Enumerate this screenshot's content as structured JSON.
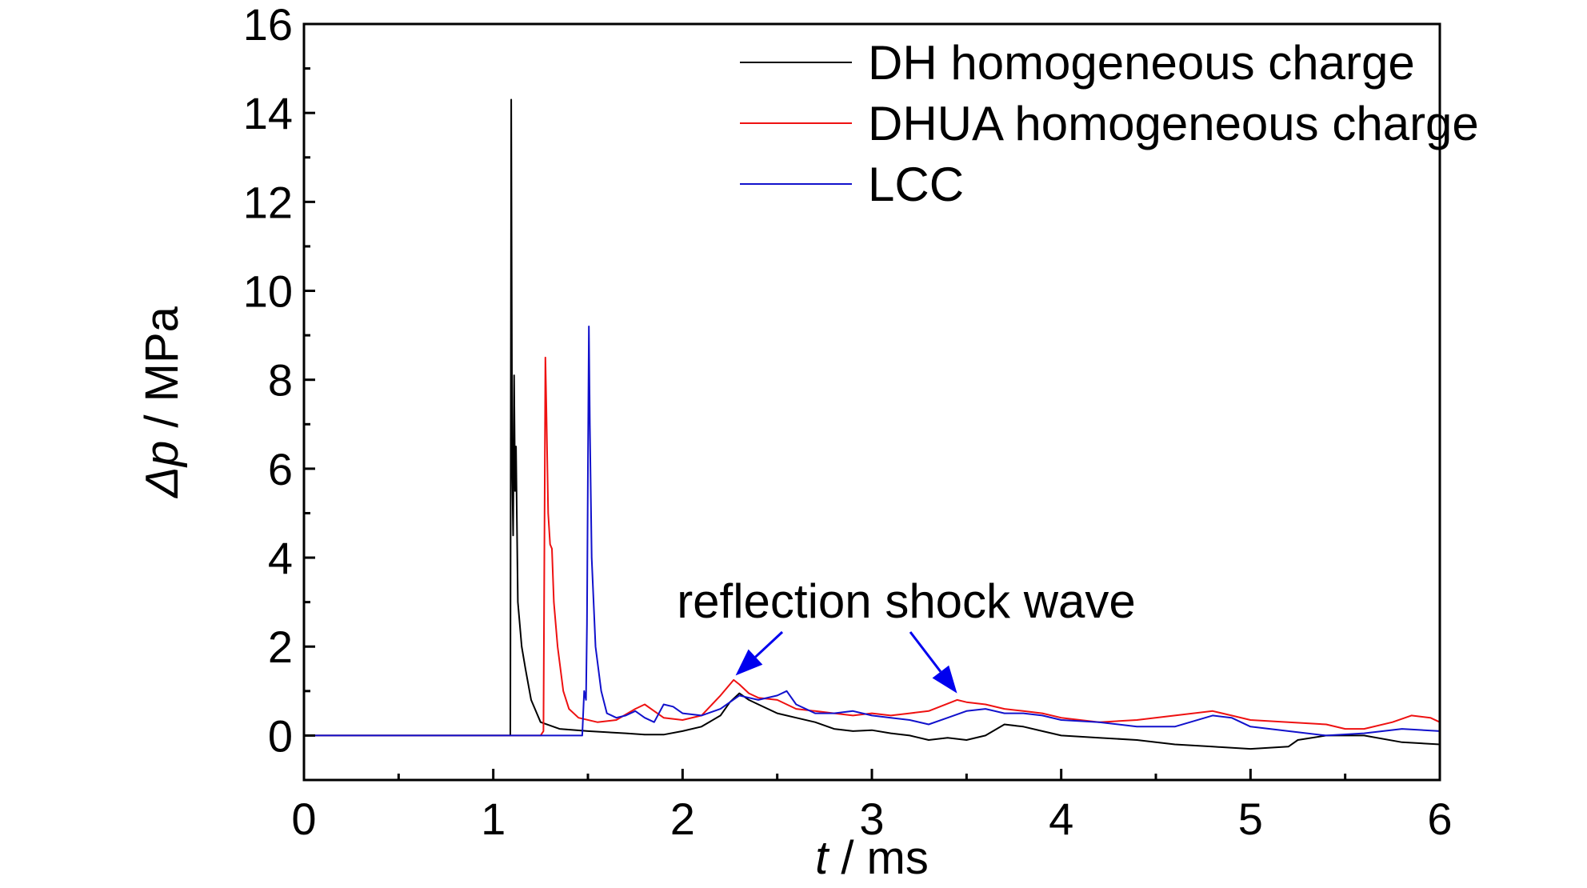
{
  "chart_data": {
    "type": "line",
    "xlabel": {
      "var": "t",
      "unit": " / ms"
    },
    "ylabel": {
      "var": "Δp",
      "unit": " / MPa"
    },
    "xlim": [
      0,
      6
    ],
    "ylim": [
      -1,
      16
    ],
    "x_ticks": [
      0,
      1,
      2,
      3,
      4,
      5,
      6
    ],
    "y_ticks": [
      0,
      2,
      4,
      6,
      8,
      10,
      12,
      14,
      16
    ],
    "grid": false,
    "legend_position": "top-right",
    "annotation": {
      "text": "reflection shock wave",
      "arrow_targets": [
        [
          2.28,
          1.35
        ],
        [
          3.45,
          0.95
        ]
      ],
      "color": "#0000ee"
    },
    "series": [
      {
        "name": "DH homogeneous charge",
        "color": "#000000",
        "points": [
          [
            0,
            0
          ],
          [
            1.08,
            0
          ],
          [
            1.09,
            0
          ],
          [
            1.095,
            14.3
          ],
          [
            1.1,
            6.0
          ],
          [
            1.105,
            4.5
          ],
          [
            1.11,
            8.1
          ],
          [
            1.115,
            5.5
          ],
          [
            1.12,
            6.5
          ],
          [
            1.13,
            3.0
          ],
          [
            1.15,
            2.0
          ],
          [
            1.17,
            1.5
          ],
          [
            1.2,
            0.8
          ],
          [
            1.25,
            0.3
          ],
          [
            1.35,
            0.15
          ],
          [
            1.5,
            0.1
          ],
          [
            1.7,
            0.05
          ],
          [
            1.8,
            0.02
          ],
          [
            1.9,
            0.02
          ],
          [
            2.0,
            0.1
          ],
          [
            2.1,
            0.2
          ],
          [
            2.2,
            0.45
          ],
          [
            2.25,
            0.75
          ],
          [
            2.3,
            0.95
          ],
          [
            2.35,
            0.8
          ],
          [
            2.4,
            0.7
          ],
          [
            2.5,
            0.5
          ],
          [
            2.6,
            0.4
          ],
          [
            2.7,
            0.3
          ],
          [
            2.8,
            0.15
          ],
          [
            2.9,
            0.1
          ],
          [
            3.0,
            0.12
          ],
          [
            3.1,
            0.05
          ],
          [
            3.2,
            0.0
          ],
          [
            3.3,
            -0.1
          ],
          [
            3.4,
            -0.05
          ],
          [
            3.5,
            -0.1
          ],
          [
            3.6,
            0.0
          ],
          [
            3.7,
            0.25
          ],
          [
            3.8,
            0.2
          ],
          [
            3.9,
            0.1
          ],
          [
            4.0,
            0.0
          ],
          [
            4.2,
            -0.05
          ],
          [
            4.4,
            -0.1
          ],
          [
            4.6,
            -0.2
          ],
          [
            4.8,
            -0.25
          ],
          [
            5.0,
            -0.3
          ],
          [
            5.2,
            -0.25
          ],
          [
            5.25,
            -0.1
          ],
          [
            5.4,
            0.0
          ],
          [
            5.6,
            0.0
          ],
          [
            5.8,
            -0.15
          ],
          [
            6.0,
            -0.2
          ]
        ]
      },
      {
        "name": "DHUA homogeneous charge",
        "color": "#ee1111",
        "points": [
          [
            0,
            0
          ],
          [
            1.25,
            0
          ],
          [
            1.265,
            0.1
          ],
          [
            1.275,
            8.5
          ],
          [
            1.28,
            7.5
          ],
          [
            1.29,
            5.0
          ],
          [
            1.3,
            4.3
          ],
          [
            1.31,
            4.2
          ],
          [
            1.32,
            3.0
          ],
          [
            1.34,
            2.0
          ],
          [
            1.37,
            1.0
          ],
          [
            1.4,
            0.6
          ],
          [
            1.45,
            0.4
          ],
          [
            1.55,
            0.3
          ],
          [
            1.65,
            0.35
          ],
          [
            1.75,
            0.6
          ],
          [
            1.8,
            0.7
          ],
          [
            1.85,
            0.55
          ],
          [
            1.9,
            0.4
          ],
          [
            2.0,
            0.35
          ],
          [
            2.1,
            0.45
          ],
          [
            2.2,
            0.9
          ],
          [
            2.27,
            1.25
          ],
          [
            2.3,
            1.15
          ],
          [
            2.35,
            0.95
          ],
          [
            2.4,
            0.85
          ],
          [
            2.5,
            0.8
          ],
          [
            2.6,
            0.6
          ],
          [
            2.7,
            0.55
          ],
          [
            2.8,
            0.5
          ],
          [
            2.9,
            0.45
          ],
          [
            3.0,
            0.5
          ],
          [
            3.1,
            0.45
          ],
          [
            3.2,
            0.5
          ],
          [
            3.3,
            0.55
          ],
          [
            3.45,
            0.8
          ],
          [
            3.5,
            0.75
          ],
          [
            3.6,
            0.7
          ],
          [
            3.7,
            0.6
          ],
          [
            3.8,
            0.55
          ],
          [
            3.9,
            0.5
          ],
          [
            4.0,
            0.4
          ],
          [
            4.2,
            0.3
          ],
          [
            4.4,
            0.35
          ],
          [
            4.6,
            0.45
          ],
          [
            4.8,
            0.55
          ],
          [
            4.9,
            0.45
          ],
          [
            5.0,
            0.35
          ],
          [
            5.2,
            0.3
          ],
          [
            5.4,
            0.25
          ],
          [
            5.5,
            0.15
          ],
          [
            5.6,
            0.15
          ],
          [
            5.75,
            0.3
          ],
          [
            5.85,
            0.45
          ],
          [
            5.95,
            0.4
          ],
          [
            6.0,
            0.3
          ]
        ]
      },
      {
        "name": "LCC",
        "color": "#1111cc",
        "points": [
          [
            0,
            0
          ],
          [
            1.47,
            0
          ],
          [
            1.48,
            1.0
          ],
          [
            1.49,
            0.8
          ],
          [
            1.495,
            2.5
          ],
          [
            1.5,
            6.0
          ],
          [
            1.505,
            9.2
          ],
          [
            1.51,
            7.0
          ],
          [
            1.52,
            4.0
          ],
          [
            1.54,
            2.0
          ],
          [
            1.57,
            1.0
          ],
          [
            1.6,
            0.5
          ],
          [
            1.65,
            0.4
          ],
          [
            1.7,
            0.45
          ],
          [
            1.75,
            0.55
          ],
          [
            1.8,
            0.4
          ],
          [
            1.85,
            0.3
          ],
          [
            1.9,
            0.7
          ],
          [
            1.95,
            0.65
          ],
          [
            2.0,
            0.5
          ],
          [
            2.1,
            0.45
          ],
          [
            2.2,
            0.6
          ],
          [
            2.3,
            0.9
          ],
          [
            2.35,
            0.85
          ],
          [
            2.4,
            0.8
          ],
          [
            2.5,
            0.9
          ],
          [
            2.55,
            1.0
          ],
          [
            2.6,
            0.7
          ],
          [
            2.7,
            0.5
          ],
          [
            2.8,
            0.5
          ],
          [
            2.9,
            0.55
          ],
          [
            3.0,
            0.45
          ],
          [
            3.1,
            0.4
          ],
          [
            3.2,
            0.35
          ],
          [
            3.3,
            0.25
          ],
          [
            3.4,
            0.4
          ],
          [
            3.5,
            0.55
          ],
          [
            3.6,
            0.6
          ],
          [
            3.7,
            0.5
          ],
          [
            3.8,
            0.5
          ],
          [
            3.9,
            0.45
          ],
          [
            4.0,
            0.35
          ],
          [
            4.2,
            0.3
          ],
          [
            4.4,
            0.2
          ],
          [
            4.6,
            0.2
          ],
          [
            4.8,
            0.45
          ],
          [
            4.9,
            0.4
          ],
          [
            5.0,
            0.2
          ],
          [
            5.2,
            0.1
          ],
          [
            5.4,
            0.0
          ],
          [
            5.6,
            0.05
          ],
          [
            5.8,
            0.15
          ],
          [
            6.0,
            0.1
          ]
        ]
      }
    ]
  }
}
